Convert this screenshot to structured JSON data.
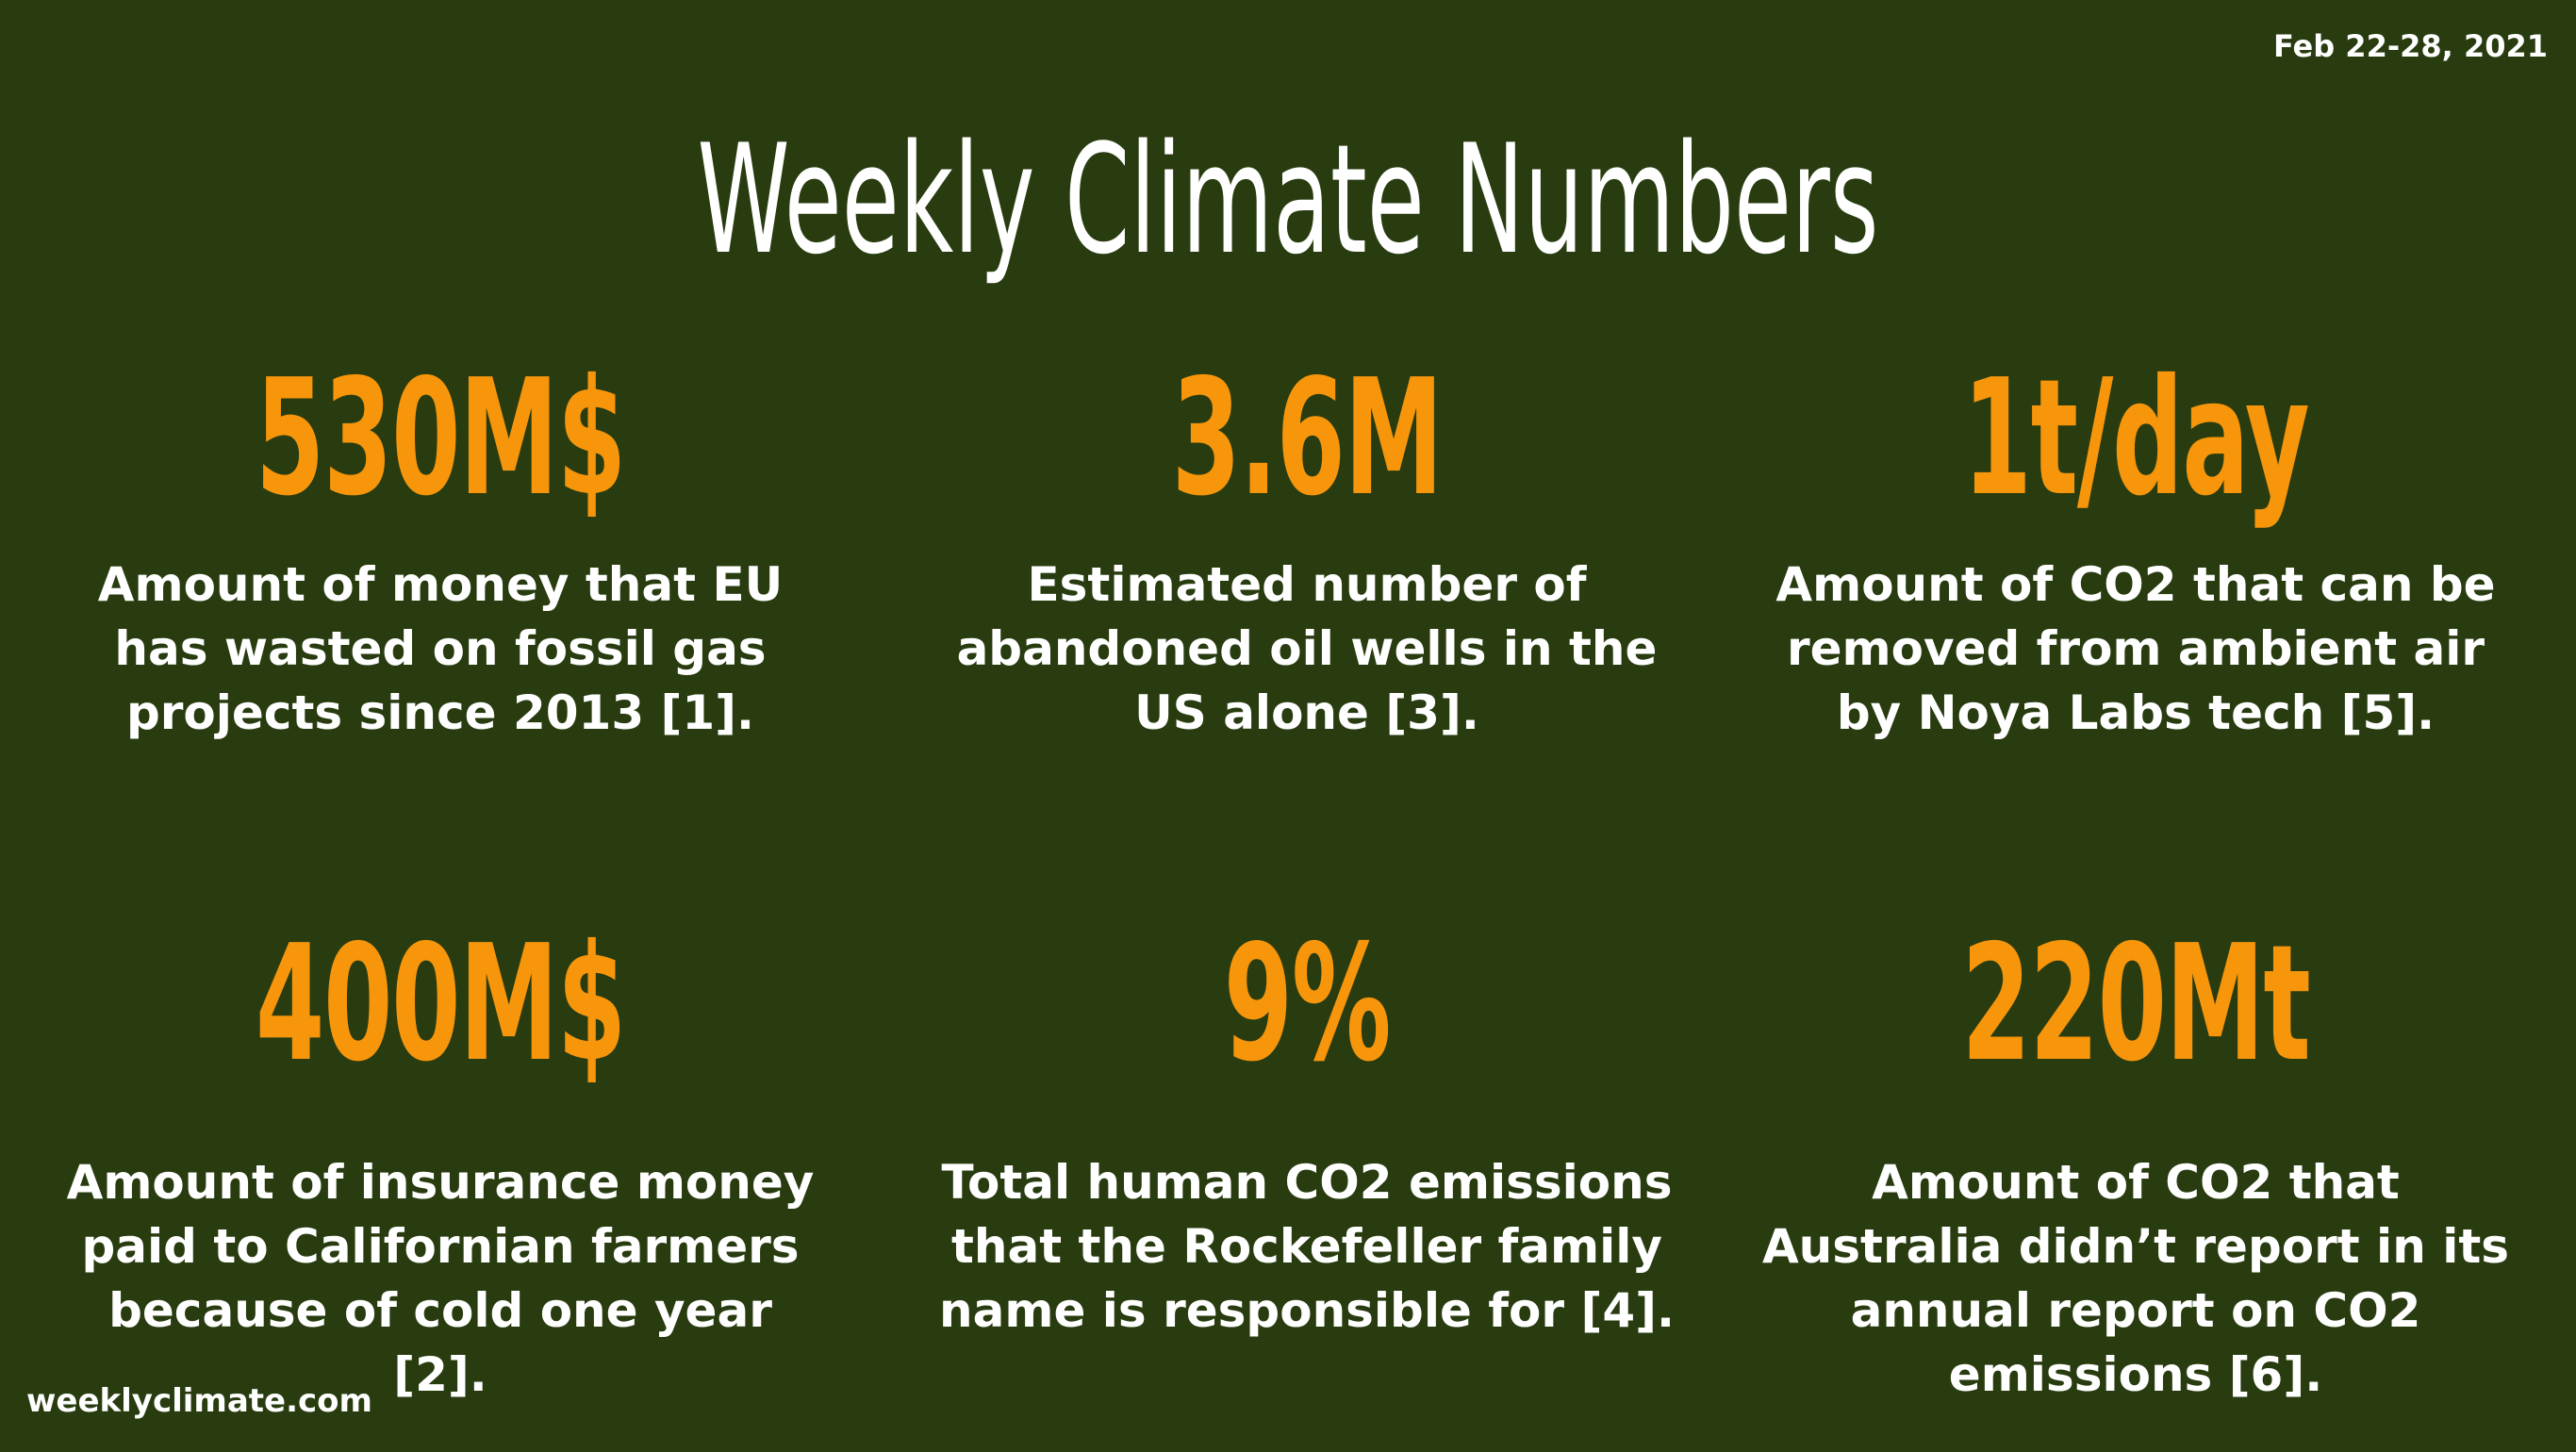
{
  "date_range": "Feb 22-28, 2021",
  "title": "Weekly Climate Numbers",
  "stats": [
    {
      "value": "530M$",
      "description": "Amount of money that EU has wasted on fossil gas projects since 2013 [1]."
    },
    {
      "value": "3.6M",
      "description": "Estimated number of abandoned oil wells in the US alone [3]."
    },
    {
      "value": "1t/day",
      "description": "Amount of CO2 that can be removed from ambient air by Noya Labs tech [5]."
    },
    {
      "value": "400M$",
      "description": "Amount of insurance money paid to Californian farmers because of cold one year [2]."
    },
    {
      "value": "9%",
      "description": "Total human CO2 emissions that the Rockefeller family name is responsible for [4]."
    },
    {
      "value": "220Mt",
      "description": "Amount of CO2 that Australia didn’t report in its annual report on CO2 emissions [6]."
    }
  ],
  "footer": "weeklyclimate.com",
  "colors": {
    "background": "#283c10",
    "accent": "#f7950b",
    "text": "#ffffff"
  }
}
